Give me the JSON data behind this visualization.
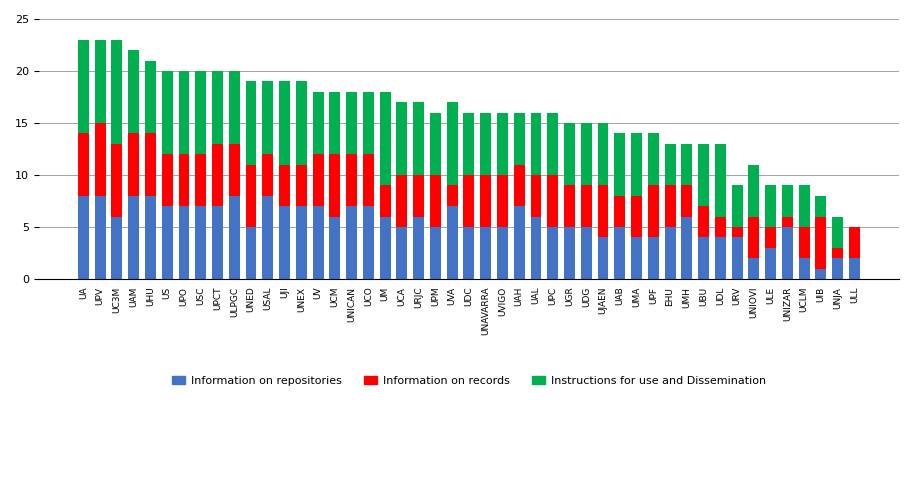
{
  "categories": [
    "UA",
    "UPV",
    "UC3M",
    "UAM",
    "UHU",
    "US",
    "UPO",
    "USC",
    "UPCT",
    "ULPGC",
    "UNED",
    "USAL",
    "UJI",
    "UNEX",
    "UV",
    "UCM",
    "UNICAN",
    "UCO",
    "UM",
    "UCA",
    "URJC",
    "UPM",
    "UVA",
    "UDC",
    "UNAVARRA",
    "UVIGO",
    "UAH",
    "UAL",
    "UPC",
    "UGR",
    "UDG",
    "UJAEN",
    "UAB",
    "UMA",
    "UPF",
    "EHU",
    "UMH",
    "UBU",
    "UDL",
    "URV",
    "UNIOVI",
    "ULE",
    "UNIZAR",
    "UCLM",
    "UIB",
    "UNJA",
    "ULL"
  ],
  "blue": [
    8,
    8,
    6,
    8,
    8,
    7,
    7,
    7,
    7,
    8,
    5,
    8,
    7,
    7,
    7,
    6,
    7,
    7,
    6,
    5,
    6,
    5,
    7,
    5,
    5,
    5,
    7,
    6,
    5,
    5,
    5,
    4,
    5,
    4,
    4,
    5,
    6,
    4,
    4,
    4,
    2,
    3,
    5,
    2,
    1,
    2,
    2
  ],
  "red": [
    6,
    7,
    7,
    6,
    6,
    5,
    5,
    5,
    6,
    5,
    6,
    4,
    4,
    4,
    5,
    6,
    5,
    5,
    3,
    5,
    4,
    5,
    2,
    5,
    5,
    5,
    4,
    4,
    5,
    4,
    4,
    5,
    3,
    4,
    5,
    4,
    3,
    3,
    2,
    1,
    4,
    2,
    1,
    3,
    5,
    1,
    3
  ],
  "green": [
    9,
    8,
    10,
    8,
    7,
    8,
    8,
    8,
    7,
    7,
    8,
    7,
    8,
    8,
    6,
    6,
    6,
    6,
    9,
    7,
    7,
    6,
    8,
    6,
    6,
    6,
    5,
    6,
    6,
    6,
    6,
    6,
    6,
    6,
    5,
    4,
    4,
    6,
    7,
    4,
    5,
    4,
    3,
    4,
    2,
    3,
    0
  ],
  "blue_color": "#4472C4",
  "red_color": "#FF0000",
  "green_color": "#00B050",
  "legend_blue": "Information on repositories",
  "legend_red": "Information on records",
  "legend_green": "Instructions for use and Dissemination",
  "ylim": [
    0,
    25
  ],
  "yticks": [
    0,
    5,
    10,
    15,
    20,
    25
  ],
  "figsize": [
    9.14,
    5.03
  ],
  "dpi": 100
}
